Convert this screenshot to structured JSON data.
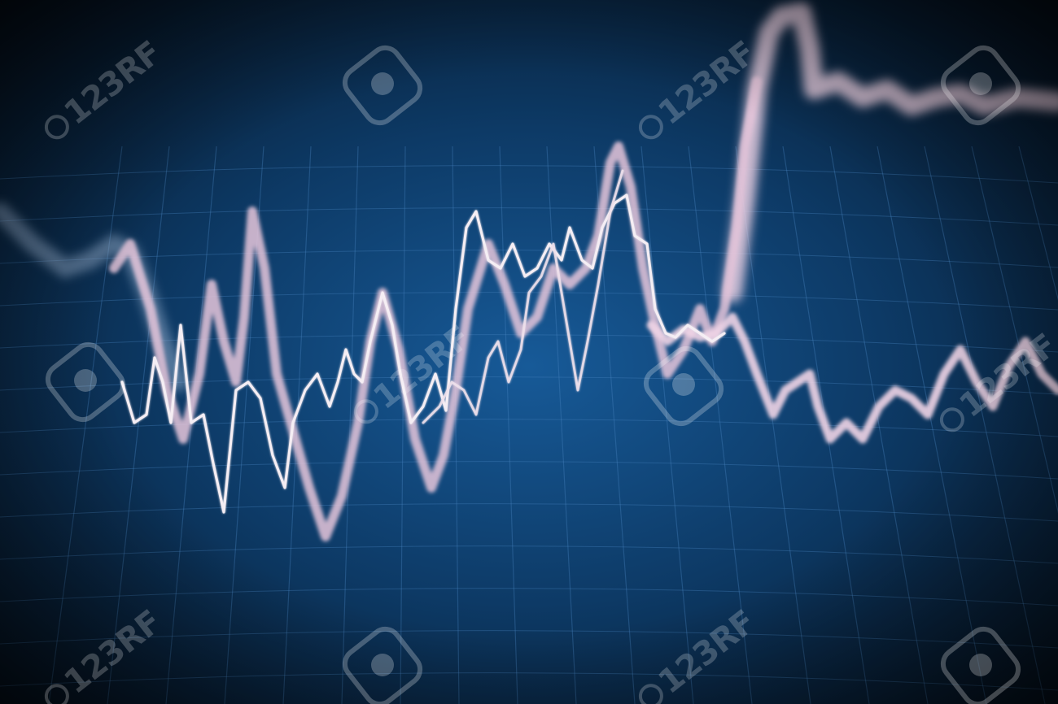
{
  "image": {
    "subject": "financial-line-chart-on-blue-screen",
    "background_color": "#0d3a66",
    "grid_color": "#4a86c4",
    "line_colors": [
      "#f1e3f0",
      "#e7c9dc",
      "#cfd8e8"
    ]
  },
  "watermark": {
    "text": "123RF",
    "icon": "camera-shutter-icon",
    "color": "#ffffff"
  }
}
